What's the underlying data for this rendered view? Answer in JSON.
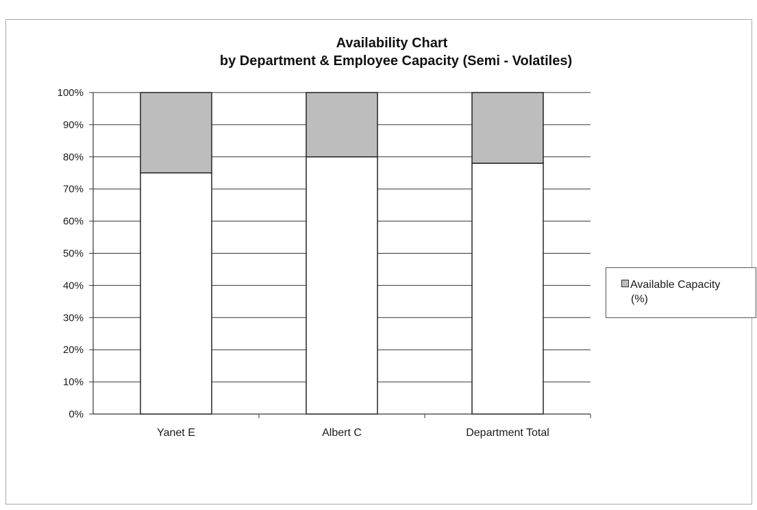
{
  "chart_data": {
    "type": "bar",
    "stacked": true,
    "title": "Availability Chart",
    "subtitle": "by Department & Employee Capacity (Semi - Volatiles)",
    "xlabel": "",
    "ylabel": "",
    "ylim": [
      0,
      100
    ],
    "yticks": [
      "0%",
      "10%",
      "20%",
      "30%",
      "40%",
      "50%",
      "60%",
      "70%",
      "80%",
      "90%",
      "100%"
    ],
    "grid": true,
    "legend_position": "right",
    "categories": [
      "Yanet E",
      "Albert C",
      "Department Total"
    ],
    "series": [
      {
        "values": [
          75,
          80,
          78
        ],
        "color": "#ffffff"
      },
      {
        "name": "Available Capacity (%)",
        "values": [
          25,
          20,
          22
        ],
        "color": "#bdbdbd"
      }
    ]
  },
  "legend": {
    "label_line1": "Available Capacity",
    "label_line2": "(%)"
  }
}
